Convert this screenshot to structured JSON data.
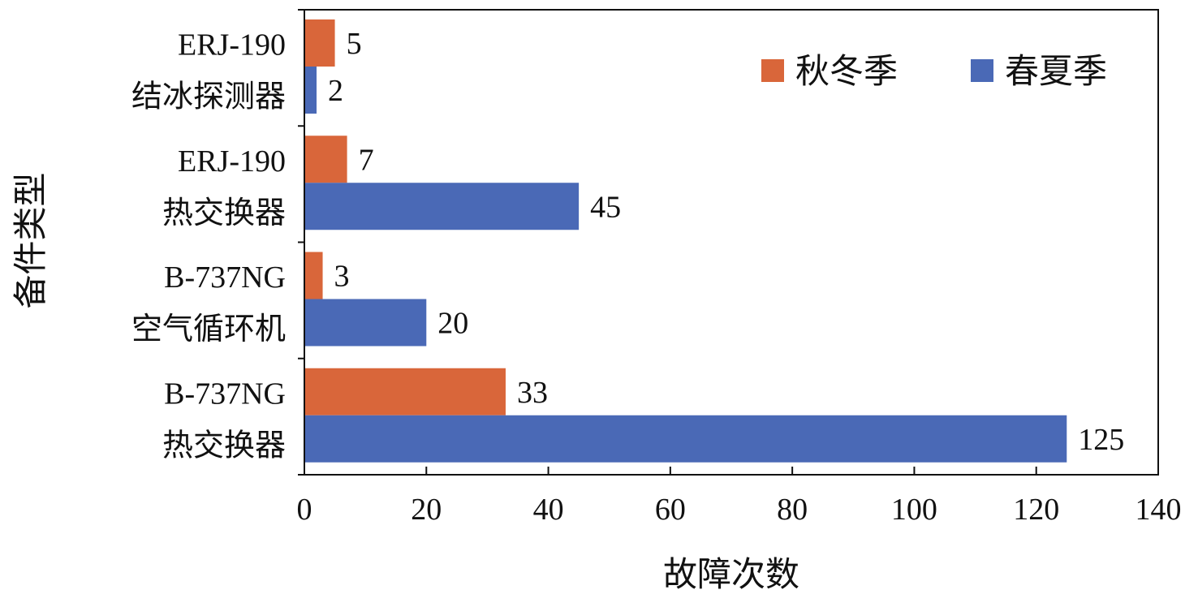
{
  "chart_data": {
    "type": "bar",
    "orientation": "horizontal",
    "xlabel": "故障次数",
    "ylabel": "备件类型",
    "xlim": [
      0,
      140
    ],
    "xticks": [
      0,
      20,
      40,
      60,
      80,
      100,
      120,
      140
    ],
    "grid": false,
    "legend_position": "top-right",
    "categories": [
      {
        "line1": "ERJ-190",
        "line2": "结冰探测器"
      },
      {
        "line1": "ERJ-190",
        "line2": "热交换器"
      },
      {
        "line1": "B-737NG",
        "line2": "空气循环机"
      },
      {
        "line1": "B-737NG",
        "line2": "热交换器"
      }
    ],
    "series": [
      {
        "name": "秋冬季",
        "color": "#D9663A",
        "values": [
          5,
          7,
          3,
          33
        ]
      },
      {
        "name": "春夏季",
        "color": "#4A69B6",
        "values": [
          2,
          45,
          20,
          125
        ]
      }
    ]
  }
}
